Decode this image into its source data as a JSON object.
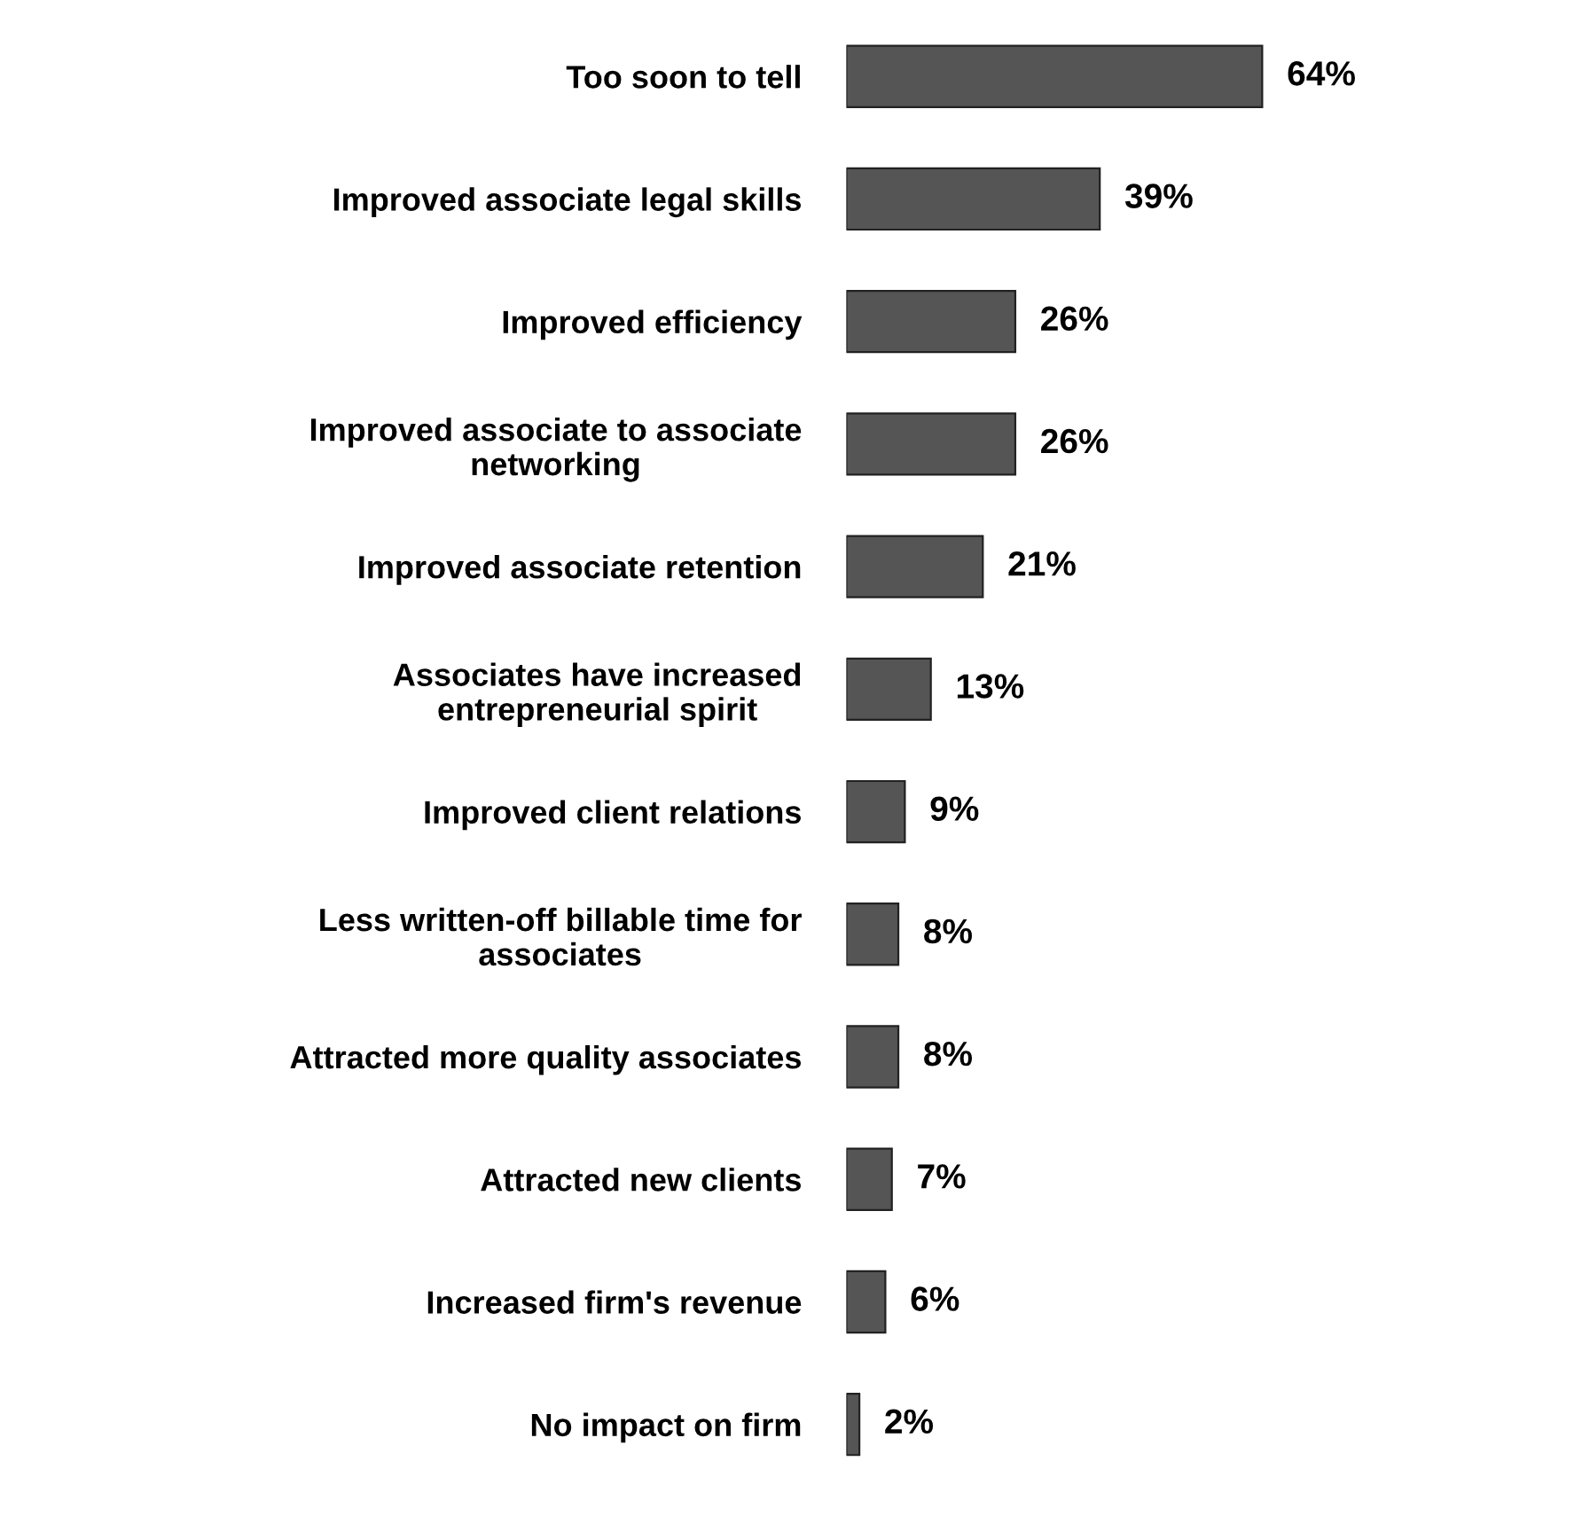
{
  "chart_data": {
    "type": "bar",
    "orientation": "horizontal",
    "categories": [
      "Too soon to tell",
      "Improved associate legal skills",
      "Improved efficiency",
      "Improved associate to associate\nnetworking",
      "Improved associate retention",
      "Associates have increased\nentrepreneurial spirit",
      "Improved client relations",
      "Less written-off billable time for\nassociates",
      "Attracted more quality associates",
      "Attracted new clients",
      "Increased firm's revenue",
      "No impact on firm"
    ],
    "values": [
      64,
      39,
      26,
      26,
      21,
      13,
      9,
      8,
      8,
      7,
      6,
      2
    ],
    "value_labels": [
      "64%",
      "39%",
      "26%",
      "26%",
      "21%",
      "13%",
      "9%",
      "8%",
      "8%",
      "7%",
      "6%",
      "2%"
    ],
    "color": "#555555",
    "tick_labels": "y",
    "grid": false,
    "legend": false
  }
}
